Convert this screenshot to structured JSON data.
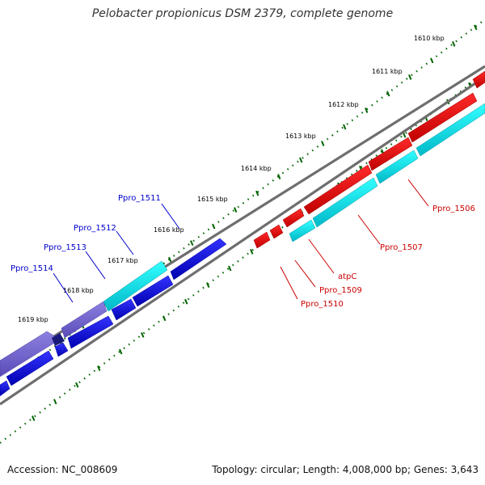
{
  "title": "Pelobacter propionicus DSM 2379, complete genome",
  "accession": "Accession: NC_008609",
  "summary": "Topology: circular; Length: 4,008,000 bp; Genes: 3,643",
  "tick_labels": [
    "1610 kbp",
    "1611 kbp",
    "1612 kbp",
    "1613 kbp",
    "1614 kbp",
    "1615 kbp",
    "1616 kbp",
    "1617 kbp",
    "1618 kbp",
    "1619 kbp"
  ],
  "colors": {
    "forward_cds": "#0000ee",
    "forward_highlight": "#00e5ee",
    "forward_other": "#6a5acd",
    "reverse_cds": "#ee0000",
    "reverse_highlight": "#00e5ee",
    "backbone": "#808080",
    "ticks": "#006400",
    "label_blue": "#0000cc",
    "label_red": "#cc0000"
  },
  "gene_labels_forward": [
    "Ppro_1511",
    "Ppro_1512",
    "Ppro_1513",
    "Ppro_1514"
  ],
  "gene_labels_reverse": [
    "Ppro_1506",
    "Ppro_1507",
    "atpC",
    "Ppro_1509",
    "Ppro_1510"
  ]
}
